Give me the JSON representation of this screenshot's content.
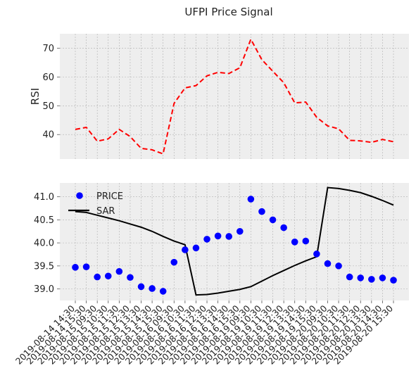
{
  "title": "UFPI Price Signal",
  "colors": {
    "rsi_line": "#ff0000",
    "price_marker": "#0000ff",
    "sar_line": "#000000",
    "panel_bg": "#eeeeee",
    "grid": "#b0b0b0"
  },
  "chart_data": [
    {
      "type": "line",
      "name": "rsi-panel",
      "ylabel": "RSI",
      "ylim": [
        31.5,
        75
      ],
      "yticks": [
        40,
        50,
        60,
        70
      ],
      "grid": true,
      "x": [
        "2019-08-14 14:30",
        "2019-08-14 15:30",
        "2019-08-15 09:30",
        "2019-08-15 10:30",
        "2019-08-15 11:30",
        "2019-08-15 12:30",
        "2019-08-15 13:30",
        "2019-08-15 14:30",
        "2019-08-15 15:30",
        "2019-08-16 09:30",
        "2019-08-16 10:30",
        "2019-08-16 11:30",
        "2019-08-16 12:30",
        "2019-08-16 13:30",
        "2019-08-16 14:30",
        "2019-08-16 15:30",
        "2019-08-19 09:30",
        "2019-08-19 10:30",
        "2019-08-19 11:30",
        "2019-08-19 12:30",
        "2019-08-19 13:30",
        "2019-08-19 14:30",
        "2019-08-19 15:30",
        "2019-08-20 09:30",
        "2019-08-20 10:30",
        "2019-08-20 11:30",
        "2019-08-20 12:30",
        "2019-08-20 13:30",
        "2019-08-20 14:30",
        "2019-08-20 15:30"
      ],
      "series": [
        {
          "style": "dashed",
          "values": [
            41.8,
            42.5,
            37.7,
            38.5,
            41.8,
            39.3,
            35.2,
            34.7,
            33.3,
            50.8,
            56.2,
            57.0,
            60.4,
            61.6,
            61.2,
            63.2,
            73.1,
            66.0,
            62.0,
            58.0,
            51.0,
            51.3,
            46.0,
            43.0,
            42.0,
            38.0,
            37.8,
            37.3,
            38.3,
            37.5
          ]
        }
      ]
    },
    {
      "type": "line",
      "name": "price-panel",
      "ylim": [
        38.75,
        41.3
      ],
      "yticks": [
        39.0,
        39.5,
        40.0,
        40.5,
        41.0
      ],
      "grid": true,
      "legend": "upper-left",
      "x": [
        "2019-08-14 14:30",
        "2019-08-14 15:30",
        "2019-08-15 09:30",
        "2019-08-15 10:30",
        "2019-08-15 11:30",
        "2019-08-15 12:30",
        "2019-08-15 13:30",
        "2019-08-15 14:30",
        "2019-08-15 15:30",
        "2019-08-16 09:30",
        "2019-08-16 10:30",
        "2019-08-16 11:30",
        "2019-08-16 12:30",
        "2019-08-16 13:30",
        "2019-08-16 14:30",
        "2019-08-16 15:30",
        "2019-08-19 09:30",
        "2019-08-19 10:30",
        "2019-08-19 11:30",
        "2019-08-19 12:30",
        "2019-08-19 13:30",
        "2019-08-19 14:30",
        "2019-08-19 15:30",
        "2019-08-20 09:30",
        "2019-08-20 10:30",
        "2019-08-20 11:30",
        "2019-08-20 12:30",
        "2019-08-20 13:30",
        "2019-08-20 14:30",
        "2019-08-20 15:30"
      ],
      "series": [
        {
          "name": "PRICE",
          "marker": "circle",
          "values": [
            39.47,
            39.48,
            39.26,
            39.28,
            39.38,
            39.25,
            39.05,
            39.01,
            38.95,
            39.58,
            39.85,
            39.89,
            40.08,
            40.15,
            40.14,
            40.25,
            40.95,
            40.68,
            40.5,
            40.33,
            40.02,
            40.04,
            39.76,
            39.55,
            39.5,
            39.26,
            39.24,
            39.21,
            39.24,
            39.19
          ]
        },
        {
          "name": "SAR",
          "style": "solid",
          "values": [
            40.68,
            40.66,
            40.6,
            40.54,
            40.48,
            40.41,
            40.34,
            40.25,
            40.14,
            40.04,
            39.96,
            38.87,
            38.88,
            38.91,
            38.95,
            38.99,
            39.05,
            39.17,
            39.29,
            39.4,
            39.51,
            39.61,
            39.7,
            41.2,
            41.18,
            41.14,
            41.09,
            41.01,
            40.92,
            40.82
          ]
        }
      ]
    }
  ]
}
